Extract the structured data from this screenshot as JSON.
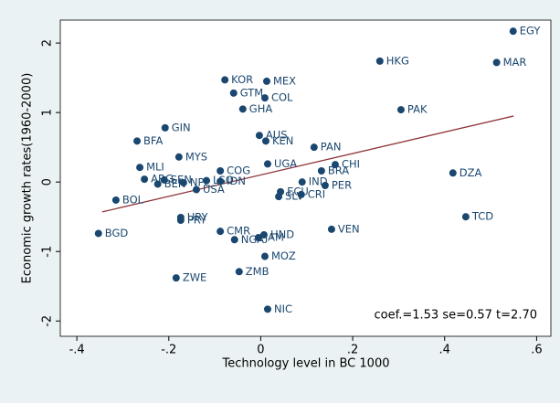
{
  "chart_data": {
    "type": "scatter",
    "xlabel": "Technology level in BC 1000",
    "ylabel": "Economic growth rates(1960-2000)",
    "annotation": "coef.=1.53  se=0.57  t=2.70",
    "xlim": [
      -0.436,
      0.631
    ],
    "ylim": [
      -2.22,
      2.33
    ],
    "xticks": [
      {
        "value": -0.4,
        "label": "-.4"
      },
      {
        "value": -0.2,
        "label": "-.2"
      },
      0,
      {
        "value": 0.2,
        "label": ".2"
      },
      {
        "value": 0.4,
        "label": ".4"
      },
      {
        "value": 0.6,
        "label": ".6"
      }
    ],
    "yticks": [
      -2,
      -1,
      0,
      1,
      2
    ],
    "color": "#1a476f",
    "labels": [
      "EGY",
      "MAR",
      "HKG",
      "MEX",
      "KOR",
      "GTM",
      "COL",
      "GHA",
      "PAK",
      "GIN",
      "AUS",
      "KEN",
      "BFA",
      "PAN",
      "MYS",
      "UGA",
      "CHI",
      "MLI",
      "COG",
      "BRA",
      "DZA",
      "ARG",
      "SEN",
      "BEN",
      "NPL",
      "LSO",
      "IDN",
      "USA",
      "IND",
      "PER",
      "ECU",
      "BOL",
      "SLV",
      "CRI",
      "TCD",
      "URY",
      "PRY",
      "CMR",
      "VEN",
      "BGD",
      "HND",
      "JAM",
      "NGA",
      "MOZ",
      "ZMB",
      "ZWE",
      "NIC"
    ],
    "x": [
      0.549,
      0.513,
      0.259,
      0.013,
      -0.078,
      -0.059,
      0.009,
      -0.039,
      0.305,
      -0.208,
      -0.003,
      0.011,
      -0.269,
      0.116,
      -0.178,
      0.015,
      0.162,
      -0.263,
      -0.088,
      0.132,
      0.418,
      -0.253,
      -0.21,
      -0.224,
      -0.168,
      -0.118,
      -0.088,
      -0.14,
      0.09,
      0.14,
      0.043,
      -0.315,
      0.039,
      0.088,
      0.446,
      -0.174,
      -0.174,
      -0.088,
      0.154,
      -0.353,
      0.007,
      -0.005,
      -0.057,
      0.009,
      -0.047,
      -0.184,
      0.015
    ],
    "y": [
      2.17,
      1.72,
      1.74,
      1.45,
      1.47,
      1.28,
      1.21,
      1.05,
      1.04,
      0.78,
      0.67,
      0.59,
      0.59,
      0.5,
      0.36,
      0.26,
      0.25,
      0.21,
      0.16,
      0.16,
      0.13,
      0.04,
      0.03,
      -0.03,
      -0.01,
      0.02,
      0.01,
      -0.11,
      0.0,
      -0.05,
      -0.14,
      -0.26,
      -0.21,
      -0.18,
      -0.5,
      -0.51,
      -0.55,
      -0.71,
      -0.68,
      -0.74,
      -0.76,
      -0.8,
      -0.83,
      -1.07,
      -1.29,
      -1.38,
      -1.83
    ],
    "fit_line": {
      "x": [
        -0.345,
        0.55
      ],
      "y": [
        -0.43,
        0.95
      ],
      "color": "#90353b"
    }
  }
}
